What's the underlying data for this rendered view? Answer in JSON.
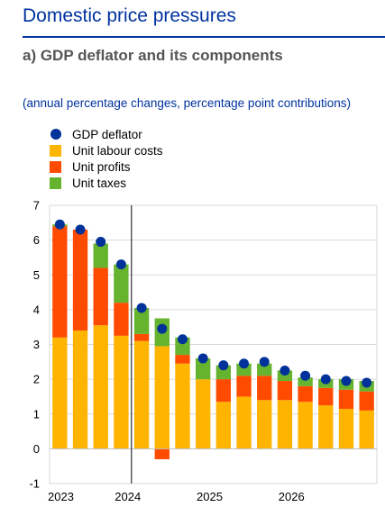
{
  "header": {
    "title": "Domestic price pressures"
  },
  "chart_data": {
    "type": "bar",
    "title": "a) GDP deflator and its components",
    "subtitle": "(annual percentage changes, percentage point contributions)",
    "xlabel": "",
    "ylabel": "",
    "ylim": [
      -1,
      7
    ],
    "yticks": [
      -1,
      0,
      1,
      2,
      3,
      4,
      5,
      6,
      7
    ],
    "grid": true,
    "legend_position": "top-left",
    "year_labels": [
      "2023",
      "2024",
      "2025",
      "2026"
    ],
    "categories": [
      "2023Q1",
      "2023Q2",
      "2023Q3",
      "2023Q4",
      "2024Q1",
      "2024Q2",
      "2024Q3",
      "2024Q4",
      "2025Q1",
      "2025Q2",
      "2025Q3",
      "2025Q4",
      "2026Q1",
      "2026Q2",
      "2026Q3",
      "2026Q4"
    ],
    "divider_after_index": 3,
    "series": [
      {
        "name": "Unit labour costs",
        "kind": "stacked-bar",
        "color": "#ffb400",
        "values": [
          3.2,
          3.4,
          3.55,
          3.25,
          3.1,
          2.95,
          2.45,
          2.0,
          1.35,
          1.5,
          1.4,
          1.4,
          1.35,
          1.25,
          1.15,
          1.1
        ]
      },
      {
        "name": "Unit profits",
        "kind": "stacked-bar",
        "color": "#ff4b00",
        "values": [
          3.2,
          2.9,
          1.65,
          0.95,
          0.2,
          -0.3,
          0.25,
          0.0,
          0.65,
          0.6,
          0.7,
          0.55,
          0.45,
          0.5,
          0.55,
          0.55
        ]
      },
      {
        "name": "Unit taxes",
        "kind": "stacked-bar",
        "color": "#65b32e",
        "values": [
          0.05,
          0.0,
          0.7,
          1.1,
          0.75,
          0.8,
          0.5,
          0.6,
          0.4,
          0.35,
          0.35,
          0.3,
          0.25,
          0.25,
          0.3,
          0.3
        ]
      },
      {
        "name": "GDP deflator",
        "kind": "dot",
        "color": "#003299",
        "values": [
          6.45,
          6.3,
          5.95,
          5.3,
          4.05,
          3.45,
          3.15,
          2.6,
          2.4,
          2.45,
          2.5,
          2.25,
          2.1,
          2.0,
          1.95,
          1.9
        ]
      }
    ]
  }
}
